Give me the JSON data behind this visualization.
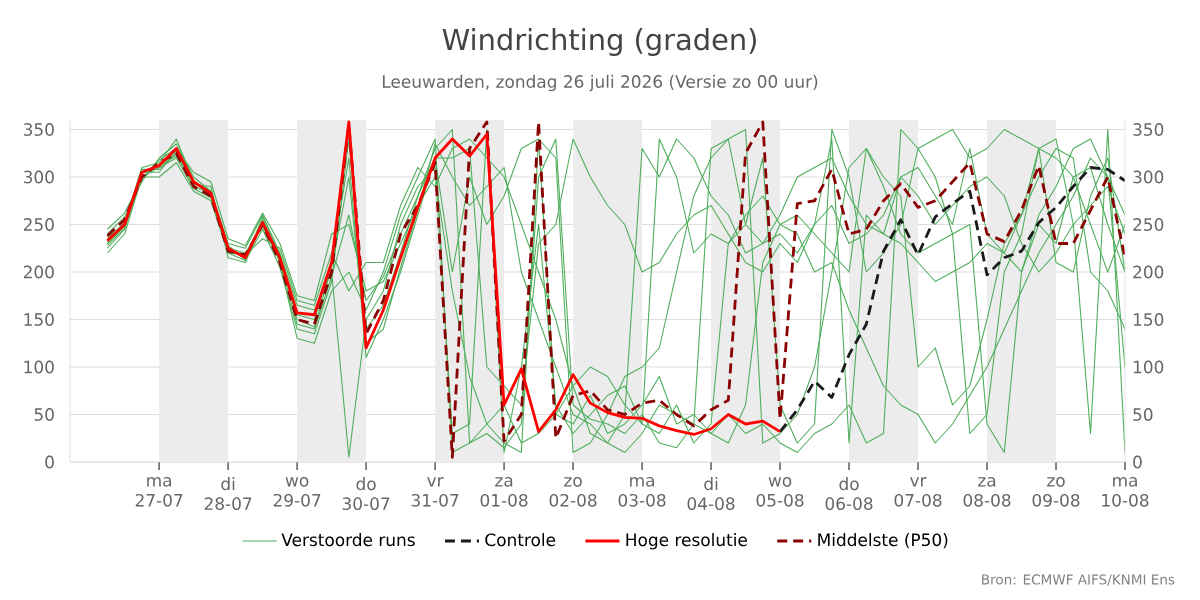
{
  "chart_data": {
    "type": "line",
    "title": "Windrichting (graden)",
    "subtitle": "Leeuwarden, zondag 26 juli 2026 (Versie zo 00 uur)",
    "annotations": [
      "Bron: ECMWF AIFS/KNMI Ens"
    ],
    "x": [
      "2026-07-26T06:00",
      "2026-07-26T12:00",
      "2026-07-26T18:00",
      "2026-07-27T00:00",
      "2026-07-27T06:00",
      "2026-07-27T12:00",
      "2026-07-27T18:00",
      "2026-07-28T00:00",
      "2026-07-28T06:00",
      "2026-07-28T12:00",
      "2026-07-28T18:00",
      "2026-07-29T00:00",
      "2026-07-29T06:00",
      "2026-07-29T12:00",
      "2026-07-29T18:00",
      "2026-07-30T00:00",
      "2026-07-30T06:00",
      "2026-07-30T12:00",
      "2026-07-30T18:00",
      "2026-07-31T00:00",
      "2026-07-31T06:00",
      "2026-07-31T12:00",
      "2026-07-31T18:00",
      "2026-08-01T00:00",
      "2026-08-01T06:00",
      "2026-08-01T12:00",
      "2026-08-01T18:00",
      "2026-08-02T00:00",
      "2026-08-02T06:00",
      "2026-08-02T12:00",
      "2026-08-02T18:00",
      "2026-08-03T00:00",
      "2026-08-03T06:00",
      "2026-08-03T12:00",
      "2026-08-03T18:00",
      "2026-08-04T00:00",
      "2026-08-04T06:00",
      "2026-08-04T12:00",
      "2026-08-04T18:00",
      "2026-08-05T00:00",
      "2026-08-05T06:00",
      "2026-08-05T12:00",
      "2026-08-05T18:00",
      "2026-08-06T00:00",
      "2026-08-06T06:00",
      "2026-08-06T12:00",
      "2026-08-06T18:00",
      "2026-08-07T00:00",
      "2026-08-07T06:00",
      "2026-08-07T12:00",
      "2026-08-07T18:00",
      "2026-08-08T00:00",
      "2026-08-08T06:00",
      "2026-08-08T12:00",
      "2026-08-08T18:00",
      "2026-08-09T00:00",
      "2026-08-09T06:00",
      "2026-08-09T12:00",
      "2026-08-09T18:00",
      "2026-08-10T00:00"
    ],
    "series": [
      {
        "name": "Verstoorde runs",
        "color": "#4fae5c",
        "values": [
          230,
          248,
          300,
          310,
          320,
          288,
          278,
          220,
          212,
          245,
          205,
          140,
          135,
          190,
          340,
          140,
          165,
          220,
          280,
          330,
          350,
          20,
          30,
          15,
          40,
          300,
          340,
          60,
          45,
          40,
          30,
          50,
          20,
          15,
          40,
          330,
          340,
          250,
          230,
          240,
          220,
          250,
          340,
          20,
          260,
          240,
          300,
          310,
          280,
          250,
          330,
          240,
          220,
          260,
          330,
          210,
          200,
          280,
          320,
          200
        ]
      },
      {
        "color": "#4fae5c",
        "values": [
          240,
          258,
          295,
          320,
          335,
          300,
          285,
          230,
          225,
          260,
          220,
          165,
          160,
          200,
          5,
          150,
          180,
          250,
          290,
          310,
          30,
          40,
          350,
          10,
          100,
          250,
          60,
          30,
          50,
          70,
          80,
          40,
          30,
          60,
          20,
          40,
          230,
          250,
          320,
          60,
          20,
          40,
          350,
          300,
          200,
          220,
          250,
          330,
          300,
          240,
          30,
          50,
          200,
          240,
          330,
          340,
          250,
          30,
          350,
          10
        ]
      },
      {
        "color": "#4fae5c",
        "values": [
          225,
          245,
          305,
          305,
          328,
          292,
          290,
          215,
          210,
          255,
          215,
          155,
          150,
          210,
          320,
          110,
          150,
          200,
          260,
          320,
          200,
          300,
          250,
          280,
          330,
          340,
          50,
          40,
          70,
          30,
          40,
          60,
          90,
          40,
          50,
          30,
          20,
          60,
          210,
          250,
          260,
          240,
          220,
          200,
          330,
          300,
          280,
          100,
          120,
          60,
          80,
          150,
          230,
          260,
          300,
          330,
          320,
          200,
          180,
          140
        ]
      },
      {
        "color": "#4fae5c",
        "values": [
          235,
          252,
          310,
          315,
          340,
          295,
          280,
          225,
          220,
          250,
          210,
          130,
          125,
          180,
          200,
          160,
          200,
          260,
          300,
          340,
          10,
          20,
          40,
          60,
          20,
          30,
          50,
          80,
          100,
          90,
          60,
          40,
          340,
          300,
          220,
          240,
          230,
          260,
          280,
          250,
          240,
          200,
          210,
          160,
          120,
          80,
          60,
          50,
          20,
          40,
          70,
          100,
          140,
          180,
          220,
          250,
          280,
          320,
          300,
          260
        ]
      },
      {
        "color": "#4fae5c",
        "values": [
          220,
          240,
          300,
          300,
          315,
          285,
          275,
          220,
          218,
          235,
          225,
          170,
          165,
          220,
          180,
          210,
          210,
          270,
          310,
          290,
          330,
          340,
          320,
          300,
          250,
          200,
          150,
          80,
          30,
          20,
          50,
          330,
          300,
          340,
          320,
          280,
          260,
          220,
          230,
          260,
          300,
          310,
          320,
          280,
          250,
          240,
          230,
          210,
          190,
          200,
          210,
          230,
          220,
          200,
          260,
          290,
          330,
          340,
          300,
          100
        ]
      },
      {
        "color": "#4fae5c",
        "values": [
          245,
          262,
          298,
          318,
          330,
          305,
          295,
          235,
          228,
          262,
          230,
          175,
          170,
          240,
          250,
          180,
          190,
          230,
          270,
          300,
          180,
          90,
          40,
          20,
          10,
          340,
          320,
          10,
          20,
          50,
          90,
          100,
          120,
          200,
          280,
          320,
          340,
          350,
          20,
          30,
          50,
          100,
          200,
          310,
          330,
          290,
          240,
          220,
          230,
          240,
          250,
          40,
          10,
          200,
          250,
          230,
          300,
          310,
          250,
          200
        ]
      },
      {
        "color": "#4fae5c",
        "values": [
          232,
          250,
          308,
          308,
          325,
          290,
          283,
          228,
          213,
          258,
          218,
          150,
          142,
          205,
          300,
          125,
          140,
          205,
          265,
          335,
          300,
          270,
          290,
          310,
          200,
          150,
          100,
          50,
          40,
          20,
          10,
          30,
          60,
          50,
          40,
          30,
          50,
          30,
          40,
          20,
          10,
          30,
          40,
          60,
          20,
          30,
          350,
          330,
          340,
          350,
          320,
          330,
          350,
          340,
          330,
          320,
          300,
          250,
          200,
          250
        ]
      },
      {
        "color": "#4fae5c",
        "values": [
          228,
          246,
          304,
          312,
          322,
          294,
          285,
          222,
          219,
          248,
          212,
          145,
          140,
          195,
          260,
          170,
          195,
          240,
          280,
          320,
          320,
          330,
          100,
          80,
          60,
          230,
          250,
          340,
          300,
          270,
          250,
          200,
          210,
          240,
          260,
          270,
          240,
          210,
          200,
          230,
          210,
          250,
          270,
          230,
          240,
          260,
          300,
          280,
          250,
          270,
          290,
          300,
          280,
          230,
          200,
          220,
          250,
          270,
          290,
          240
        ]
      },
      {
        "name": "Controle",
        "color": "#1a1a1a",
        "line_style": "dashed",
        "values": [
          null,
          null,
          null,
          null,
          null,
          null,
          null,
          null,
          null,
          null,
          null,
          null,
          null,
          null,
          null,
          null,
          null,
          null,
          null,
          null,
          null,
          null,
          null,
          null,
          null,
          null,
          null,
          null,
          null,
          null,
          null,
          null,
          null,
          null,
          null,
          null,
          null,
          null,
          null,
          32,
          55,
          85,
          68,
          113,
          145,
          222,
          255,
          218,
          258,
          272,
          285,
          197,
          215,
          222,
          252,
          268,
          290,
          310,
          308,
          296
        ]
      },
      {
        "name": "Hoge resolutie",
        "color": "#ff0000",
        "line_style": "solid",
        "values": [
          233,
          250,
          305,
          312,
          330,
          295,
          283,
          225,
          215,
          252,
          215,
          157,
          155,
          210,
          358,
          120,
          160,
          215,
          268,
          320,
          340,
          322,
          345,
          60,
          98,
          32,
          55,
          92,
          62,
          52,
          47,
          46,
          38,
          33,
          29,
          35,
          50,
          40,
          43,
          32,
          null,
          null,
          null,
          null,
          null,
          null,
          null,
          null,
          null,
          null,
          null,
          null,
          null,
          null,
          null,
          null,
          null,
          null,
          null,
          null
        ]
      },
      {
        "name": "Middelste (P50)",
        "color": "#8b0000",
        "line_style": "dashed",
        "values": [
          238,
          255,
          300,
          315,
          325,
          290,
          280,
          222,
          218,
          250,
          210,
          150,
          145,
          200,
          355,
          135,
          170,
          240,
          270,
          315,
          5,
          330,
          358,
          22,
          50,
          358,
          25,
          70,
          75,
          55,
          50,
          62,
          65,
          50,
          38,
          55,
          65,
          325,
          358,
          45,
          272,
          275,
          308,
          240,
          245,
          275,
          293,
          268,
          275,
          295,
          315,
          240,
          232,
          265,
          312,
          230,
          230,
          265,
          300,
          215
        ]
      }
    ],
    "xlim": [
      "2026-07-25T17:00",
      "2026-08-10T00:00"
    ],
    "xticks": [
      {
        "value": "2026-07-27",
        "label": "ma 27-07"
      },
      {
        "value": "2026-07-28",
        "label": "di 28-07"
      },
      {
        "value": "2026-07-29",
        "label": "wo 29-07"
      },
      {
        "value": "2026-07-30",
        "label": "do 30-07"
      },
      {
        "value": "2026-07-31",
        "label": "vr 31-07"
      },
      {
        "value": "2026-08-01",
        "label": "za 01-08"
      },
      {
        "value": "2026-08-02",
        "label": "zo 02-08"
      },
      {
        "value": "2026-08-03",
        "label": "ma 03-08"
      },
      {
        "value": "2026-08-04",
        "label": "di 04-08"
      },
      {
        "value": "2026-08-05",
        "label": "wo 05-08"
      },
      {
        "value": "2026-08-06",
        "label": "do 06-08"
      },
      {
        "value": "2026-08-07",
        "label": "vr 07-08"
      },
      {
        "value": "2026-08-08",
        "label": "za 08-08"
      },
      {
        "value": "2026-08-09",
        "label": "zo 09-08"
      },
      {
        "value": "2026-08-10",
        "label": "ma 10-08"
      }
    ],
    "ylim": [
      0,
      360
    ],
    "yticks": [
      0,
      50,
      100,
      150,
      200,
      250,
      300,
      350
    ],
    "y2lim": [
      0,
      360
    ],
    "y2ticks": [
      0,
      50,
      100,
      150,
      200,
      250,
      300,
      350
    ],
    "bands": [
      {
        "axis": "x",
        "from": "2026-07-27",
        "to": "2026-07-28",
        "color": "#ececec"
      },
      {
        "axis": "x",
        "from": "2026-07-29",
        "to": "2026-07-30",
        "color": "#ececec"
      },
      {
        "axis": "x",
        "from": "2026-07-31",
        "to": "2026-08-01",
        "color": "#ececec"
      },
      {
        "axis": "x",
        "from": "2026-08-02",
        "to": "2026-08-03",
        "color": "#ececec"
      },
      {
        "axis": "x",
        "from": "2026-08-04",
        "to": "2026-08-05",
        "color": "#ececec"
      },
      {
        "axis": "x",
        "from": "2026-08-06",
        "to": "2026-08-07",
        "color": "#ececec"
      },
      {
        "axis": "x",
        "from": "2026-08-08",
        "to": "2026-08-09",
        "color": "#ececec"
      }
    ],
    "grid": "y",
    "legend": "bottom",
    "marker": "none"
  }
}
